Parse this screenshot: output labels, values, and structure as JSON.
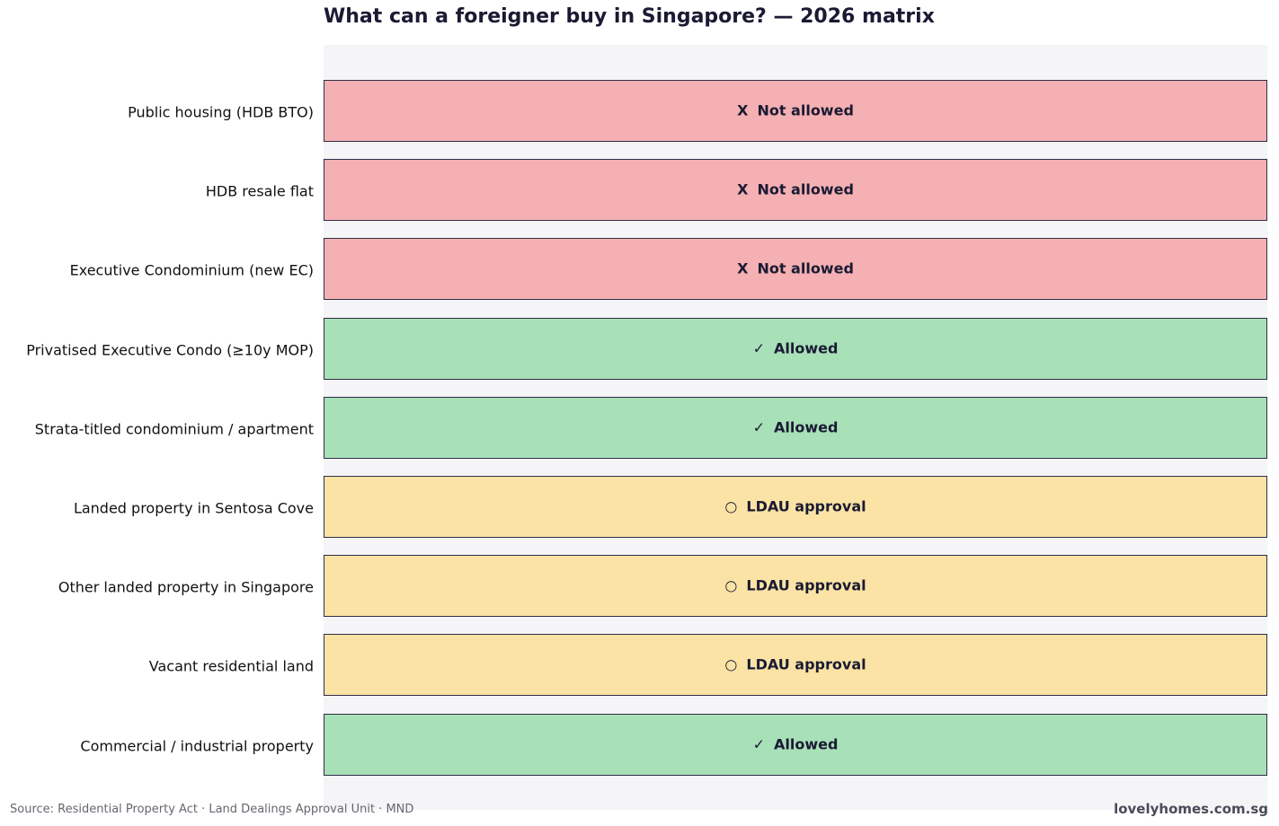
{
  "chart_data": {
    "type": "table",
    "title": "What can a foreigner buy in Singapore? — 2026 matrix",
    "rows": [
      {
        "category": "Public housing (HDB BTO)",
        "status": "not_allowed",
        "symbol": "X",
        "label": "Not allowed"
      },
      {
        "category": "HDB resale flat",
        "status": "not_allowed",
        "symbol": "X",
        "label": "Not allowed"
      },
      {
        "category": "Executive Condominium (new EC)",
        "status": "not_allowed",
        "symbol": "X",
        "label": "Not allowed"
      },
      {
        "category": "Privatised Executive Condo (≥10y MOP)",
        "status": "allowed",
        "symbol": "✓",
        "label": "Allowed"
      },
      {
        "category": "Strata-titled condominium / apartment",
        "status": "allowed",
        "symbol": "✓",
        "label": "Allowed"
      },
      {
        "category": "Landed property in Sentosa Cove",
        "status": "ldau",
        "symbol": "○",
        "label": "LDAU approval"
      },
      {
        "category": "Other landed property in Singapore",
        "status": "ldau",
        "symbol": "○",
        "label": "LDAU approval"
      },
      {
        "category": "Vacant residential land",
        "status": "ldau",
        "symbol": "○",
        "label": "LDAU approval"
      },
      {
        "category": "Commercial / industrial property",
        "status": "allowed",
        "symbol": "✓",
        "label": "Allowed"
      }
    ],
    "status_colors": {
      "not_allowed": "#f4b0b2",
      "allowed": "#a8e0b8",
      "ldau": "#fae3a4"
    },
    "plot_background": "#f5f5f7"
  },
  "footer": {
    "source": "Source: Residential Property Act · Land Dealings Approval Unit · MND",
    "brand": "lovelyhomes.com.sg"
  }
}
